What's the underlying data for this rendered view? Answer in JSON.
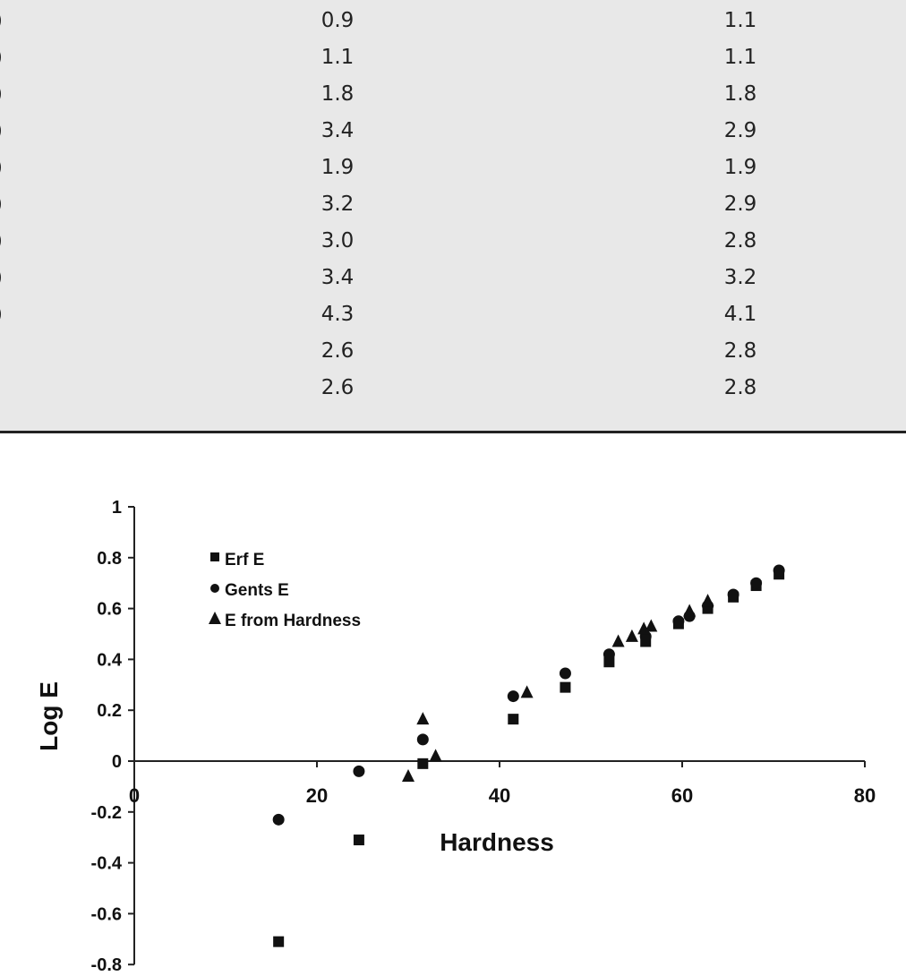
{
  "table": {
    "rows": [
      {
        "c0": ")",
        "c1": "0.9",
        "c2": "1.1"
      },
      {
        "c0": ")",
        "c1": "1.1",
        "c2": "1.1"
      },
      {
        "c0": ")",
        "c1": "1.8",
        "c2": "1.8"
      },
      {
        "c0": ")",
        "c1": "3.4",
        "c2": "2.9"
      },
      {
        "c0": ")",
        "c1": "1.9",
        "c2": "1.9"
      },
      {
        "c0": ")",
        "c1": "3.2",
        "c2": "2.9"
      },
      {
        "c0": ")",
        "c1": "3.0",
        "c2": "2.8"
      },
      {
        "c0": ")",
        "c1": "3.4",
        "c2": "3.2"
      },
      {
        "c0": ")",
        "c1": "4.3",
        "c2": "4.1"
      },
      {
        "c0": "",
        "c1": "2.6",
        "c2": "2.8"
      },
      {
        "c0": "",
        "c1": "2.6",
        "c2": "2.8"
      }
    ]
  },
  "chart_data": {
    "type": "scatter",
    "xlabel": "Hardness",
    "ylabel": "Log E",
    "xlim": [
      0,
      80
    ],
    "ylim": [
      -0.8,
      1
    ],
    "xticks": [
      "0",
      "20",
      "40",
      "60",
      "80"
    ],
    "yticks": [
      "1",
      "0.8",
      "0.6",
      "0.4",
      "0.2",
      "0",
      "-0.2",
      "-0.4",
      "-0.6",
      "-0.8"
    ],
    "legend_position": "top-left",
    "series": [
      {
        "name": "Erf E",
        "marker": "square",
        "points": [
          [
            15.8,
            -0.71
          ],
          [
            24.6,
            -0.31
          ],
          [
            31.6,
            -0.01
          ],
          [
            41.5,
            0.165
          ],
          [
            47.2,
            0.29
          ],
          [
            52,
            0.39
          ],
          [
            56,
            0.47
          ],
          [
            59.6,
            0.54
          ],
          [
            62.8,
            0.6
          ],
          [
            65.6,
            0.645
          ],
          [
            68.1,
            0.69
          ],
          [
            70.6,
            0.735
          ]
        ]
      },
      {
        "name": "Gents E",
        "marker": "circle",
        "points": [
          [
            15.8,
            -0.23
          ],
          [
            24.6,
            -0.04
          ],
          [
            31.6,
            0.085
          ],
          [
            41.5,
            0.255
          ],
          [
            47.2,
            0.345
          ],
          [
            52,
            0.42
          ],
          [
            56,
            0.49
          ],
          [
            59.6,
            0.55
          ],
          [
            60.8,
            0.57
          ],
          [
            62.8,
            0.61
          ],
          [
            65.6,
            0.655
          ],
          [
            68.1,
            0.7
          ],
          [
            70.6,
            0.75
          ]
        ]
      },
      {
        "name": "E from Hardness",
        "marker": "triangle",
        "points": [
          [
            30,
            -0.06
          ],
          [
            31.6,
            0.165
          ],
          [
            33,
            0.02
          ],
          [
            43,
            0.27
          ],
          [
            53,
            0.47
          ],
          [
            54.5,
            0.49
          ],
          [
            55.8,
            0.52
          ],
          [
            56.6,
            0.53
          ],
          [
            60.8,
            0.59
          ],
          [
            62.8,
            0.63
          ]
        ]
      }
    ]
  }
}
